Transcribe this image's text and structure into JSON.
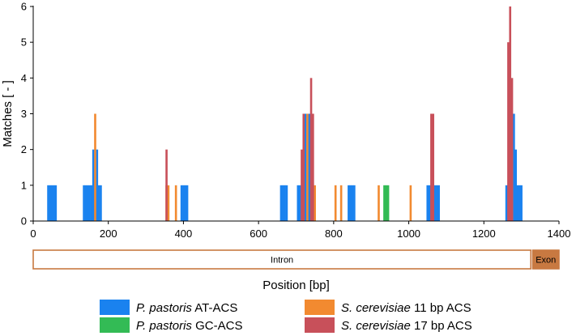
{
  "chart_data": {
    "type": "bar",
    "xlabel": "Position [bp]",
    "ylabel": "Matches [ - ]",
    "xlim": [
      0,
      1400
    ],
    "ylim": [
      0,
      6
    ],
    "xticks": [
      0,
      200,
      400,
      600,
      800,
      1000,
      1200,
      1400
    ],
    "yticks": [
      0,
      1,
      2,
      3,
      4,
      5,
      6
    ],
    "bin_width_bp": 5,
    "regions": [
      {
        "label": "Intron",
        "start": 0,
        "end": 1325,
        "color": "#c87941",
        "filled": false
      },
      {
        "label": "Exon",
        "start": 1330,
        "end": 1400,
        "color": "#c87941",
        "filled": true
      }
    ],
    "series": [
      {
        "name": "AT-ACS",
        "species": "P. pastoris",
        "color": "#1a82ef",
        "points": [
          [
            40,
            1
          ],
          [
            45,
            1
          ],
          [
            50,
            1
          ],
          [
            55,
            1
          ],
          [
            60,
            1
          ],
          [
            135,
            1
          ],
          [
            140,
            1
          ],
          [
            145,
            1
          ],
          [
            150,
            1
          ],
          [
            155,
            1
          ],
          [
            160,
            2
          ],
          [
            165,
            2
          ],
          [
            170,
            2
          ],
          [
            175,
            1
          ],
          [
            180,
            1
          ],
          [
            395,
            1
          ],
          [
            400,
            1
          ],
          [
            405,
            1
          ],
          [
            410,
            1
          ],
          [
            660,
            1
          ],
          [
            665,
            1
          ],
          [
            670,
            1
          ],
          [
            675,
            1
          ],
          [
            705,
            1
          ],
          [
            710,
            1
          ],
          [
            720,
            2
          ],
          [
            725,
            3
          ],
          [
            730,
            2
          ],
          [
            735,
            3
          ],
          [
            740,
            1
          ],
          [
            745,
            1
          ],
          [
            840,
            1
          ],
          [
            845,
            1
          ],
          [
            850,
            1
          ],
          [
            855,
            1
          ],
          [
            1050,
            1
          ],
          [
            1055,
            1
          ],
          [
            1060,
            1
          ],
          [
            1065,
            2
          ],
          [
            1070,
            1
          ],
          [
            1075,
            1
          ],
          [
            1080,
            1
          ],
          [
            1260,
            1
          ],
          [
            1265,
            1
          ],
          [
            1280,
            3
          ],
          [
            1285,
            2
          ],
          [
            1290,
            1
          ],
          [
            1295,
            1
          ],
          [
            1300,
            1
          ]
        ]
      },
      {
        "name": "GC-ACS",
        "species": "P. pastoris",
        "color": "#33bb55",
        "points": [
          [
            935,
            1
          ],
          [
            940,
            1
          ],
          [
            945,
            1
          ]
        ]
      },
      {
        "name": "11 bp ACS",
        "species": "S. cerevisiae",
        "color": "#f28a30",
        "points": [
          [
            165,
            3
          ],
          [
            355,
            1
          ],
          [
            360,
            1
          ],
          [
            380,
            1
          ],
          [
            730,
            3
          ],
          [
            750,
            1
          ],
          [
            805,
            1
          ],
          [
            820,
            1
          ],
          [
            920,
            1
          ],
          [
            1005,
            1
          ],
          [
            1270,
            3
          ],
          [
            1275,
            2
          ]
        ]
      },
      {
        "name": "17 bp ACS",
        "species": "S. cerevisiae",
        "color": "#c8505a",
        "points": [
          [
            355,
            2
          ],
          [
            715,
            2
          ],
          [
            720,
            3
          ],
          [
            740,
            4
          ],
          [
            745,
            3
          ],
          [
            1060,
            3
          ],
          [
            1065,
            3
          ],
          [
            1265,
            5
          ],
          [
            1270,
            6
          ],
          [
            1275,
            4
          ]
        ]
      }
    ],
    "legend": [
      {
        "species": "P. pastoris",
        "label": "AT-ACS",
        "color": "#1a82ef"
      },
      {
        "species": "S. cerevisiae",
        "label": "11 bp ACS",
        "color": "#f28a30"
      },
      {
        "species": "P. pastoris",
        "label": "GC-ACS",
        "color": "#33bb55"
      },
      {
        "species": "S. cerevisiae",
        "label": "17 bp ACS",
        "color": "#c8505a"
      }
    ]
  }
}
